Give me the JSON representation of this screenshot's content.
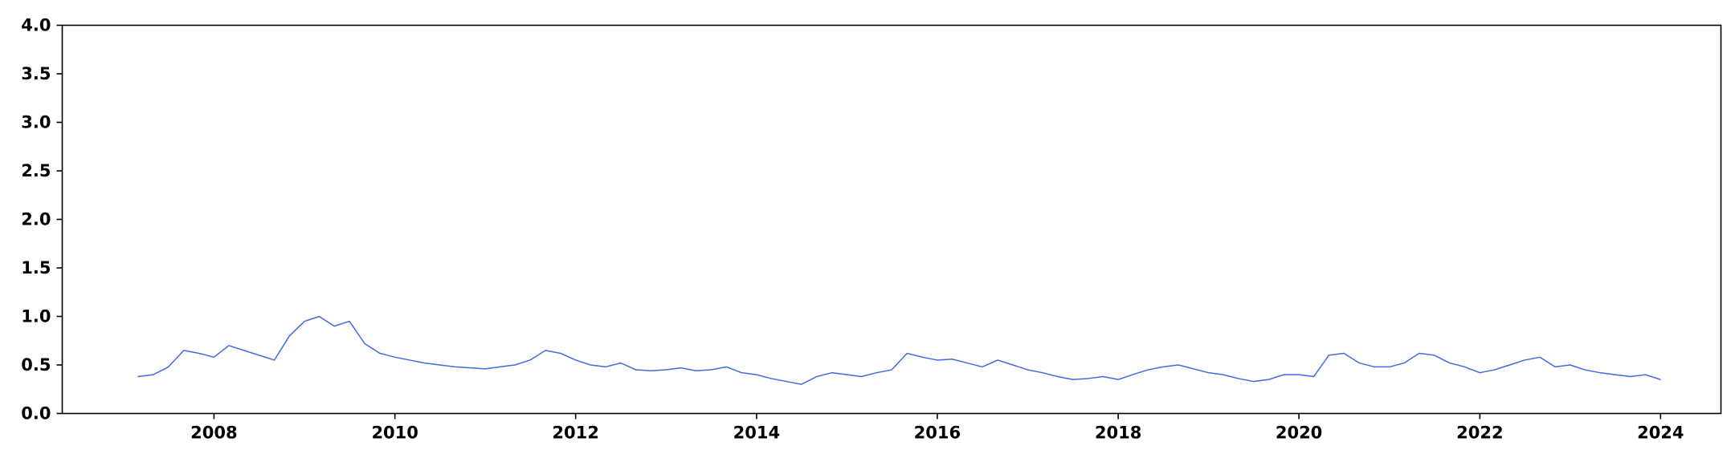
{
  "chart_data": {
    "type": "line",
    "title": "",
    "xlabel": "",
    "ylabel": "",
    "x_axis": {
      "kind": "date",
      "range": [
        "2006-04-28",
        "2024-09-01"
      ],
      "ticks": [
        "2008",
        "2010",
        "2012",
        "2014",
        "2016",
        "2018",
        "2020",
        "2022",
        "2024"
      ]
    },
    "y_axis": {
      "range": [
        0,
        4
      ],
      "ticks": [
        "0.0",
        "0.5",
        "1.0",
        "1.5",
        "2.0",
        "2.5",
        "3.0",
        "3.5",
        "4.0"
      ]
    },
    "grid": false,
    "legend": "none",
    "series": [
      {
        "color": "#4169e1",
        "x": [
          "2007-03-01",
          "2007-05-01",
          "2007-07-01",
          "2007-09-01",
          "2007-11-01",
          "2008-01-01",
          "2008-03-01",
          "2008-05-01",
          "2008-07-01",
          "2008-09-01",
          "2008-11-01",
          "2009-01-01",
          "2009-03-01",
          "2009-05-01",
          "2009-07-01",
          "2009-09-01",
          "2009-11-01",
          "2010-01-01",
          "2010-03-01",
          "2010-05-01",
          "2010-07-01",
          "2010-09-01",
          "2010-11-01",
          "2011-01-01",
          "2011-03-01",
          "2011-05-01",
          "2011-07-01",
          "2011-09-01",
          "2011-11-01",
          "2012-01-01",
          "2012-03-01",
          "2012-05-01",
          "2012-07-01",
          "2012-09-01",
          "2012-11-01",
          "2013-01-01",
          "2013-03-01",
          "2013-05-01",
          "2013-07-01",
          "2013-09-01",
          "2013-11-01",
          "2014-01-01",
          "2014-03-01",
          "2014-05-01",
          "2014-07-01",
          "2014-09-01",
          "2014-11-01",
          "2015-01-01",
          "2015-03-01",
          "2015-05-01",
          "2015-07-01",
          "2015-09-01",
          "2015-11-01",
          "2016-01-01",
          "2016-03-01",
          "2016-05-01",
          "2016-07-01",
          "2016-09-01",
          "2016-11-01",
          "2017-01-01",
          "2017-03-01",
          "2017-05-01",
          "2017-07-01",
          "2017-09-01",
          "2017-11-01",
          "2018-01-01",
          "2018-03-01",
          "2018-05-01",
          "2018-07-01",
          "2018-09-01",
          "2018-11-01",
          "2019-01-01",
          "2019-03-01",
          "2019-05-01",
          "2019-07-01",
          "2019-09-01",
          "2019-11-01",
          "2020-01-01",
          "2020-03-01",
          "2020-05-01",
          "2020-07-01",
          "2020-09-01",
          "2020-11-01",
          "2021-01-01",
          "2021-03-01",
          "2021-05-01",
          "2021-07-01",
          "2021-09-01",
          "2021-11-01",
          "2022-01-01",
          "2022-03-01",
          "2022-05-01",
          "2022-07-01",
          "2022-09-01",
          "2022-11-01",
          "2023-01-01",
          "2023-03-01",
          "2023-05-01",
          "2023-07-01",
          "2023-09-01",
          "2023-11-01",
          "2023-12-31"
        ],
        "y": [
          0.38,
          0.4,
          0.48,
          0.65,
          0.62,
          0.58,
          0.7,
          0.65,
          0.6,
          0.55,
          0.8,
          0.95,
          1.0,
          0.9,
          0.95,
          0.72,
          0.62,
          0.58,
          0.55,
          0.52,
          0.5,
          0.48,
          0.47,
          0.46,
          0.48,
          0.5,
          0.55,
          0.65,
          0.62,
          0.55,
          0.5,
          0.48,
          0.52,
          0.45,
          0.44,
          0.45,
          0.47,
          0.44,
          0.45,
          0.48,
          0.42,
          0.4,
          0.36,
          0.33,
          0.3,
          0.38,
          0.42,
          0.4,
          0.38,
          0.42,
          0.45,
          0.62,
          0.58,
          0.55,
          0.56,
          0.52,
          0.48,
          0.55,
          0.5,
          0.45,
          0.42,
          0.38,
          0.35,
          0.36,
          0.38,
          0.35,
          0.4,
          0.45,
          0.48,
          0.5,
          0.46,
          0.42,
          0.4,
          0.36,
          0.33,
          0.35,
          0.4,
          0.4,
          0.38,
          0.6,
          0.62,
          0.52,
          0.48,
          0.48,
          0.52,
          0.62,
          0.6,
          0.52,
          0.48,
          0.42,
          0.45,
          0.5,
          0.55,
          0.58,
          0.48,
          0.5,
          0.45,
          0.42,
          0.4,
          0.38,
          0.4,
          0.35
        ]
      }
    ]
  }
}
